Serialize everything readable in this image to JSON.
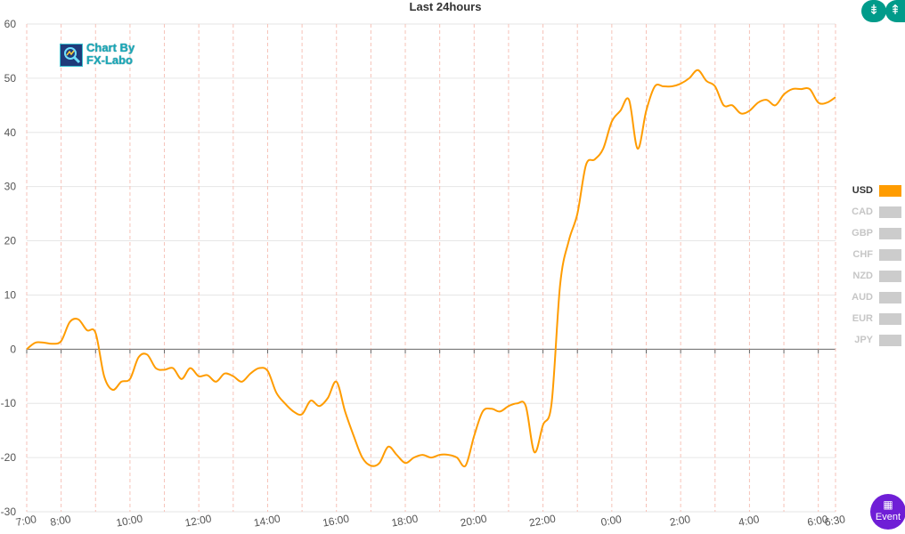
{
  "title": "Last 24hours",
  "watermark": {
    "line1": "Chart By",
    "line2": "FX-Labo"
  },
  "toolbar": {
    "collapse_icon": "collapse-vertical-icon",
    "expand_icon": "expand-vertical-icon"
  },
  "legend": [
    {
      "label": "USD",
      "active": true
    },
    {
      "label": "CAD",
      "active": false
    },
    {
      "label": "GBP",
      "active": false
    },
    {
      "label": "CHF",
      "active": false
    },
    {
      "label": "NZD",
      "active": false
    },
    {
      "label": "AUD",
      "active": false
    },
    {
      "label": "EUR",
      "active": false
    },
    {
      "label": "JPY",
      "active": false
    }
  ],
  "event_button": {
    "label": "Event",
    "icon": "calendar-icon"
  },
  "colors": {
    "usd_line": "#ff9c00",
    "inactive": "#cccccc",
    "grid": "#e6e6e6",
    "vline": "#f6c2b8",
    "event": "#6f1ed6",
    "tools": "#009b8a"
  },
  "chart_data": {
    "type": "line",
    "title": "Last 24hours",
    "xlabel": "",
    "ylabel": "",
    "ylim": [
      -30,
      60
    ],
    "yticks": [
      -30,
      -20,
      -10,
      0,
      10,
      20,
      30,
      40,
      50,
      60
    ],
    "xlim": [
      "7:00",
      "6:30"
    ],
    "xticks": [
      "7:00",
      "8:00",
      "10:00",
      "12:00",
      "14:00",
      "16:00",
      "18:00",
      "20:00",
      "22:00",
      "0:00",
      "2:00",
      "4:00",
      "6:00",
      "6:30"
    ],
    "grid": true,
    "legend_position": "right",
    "series": [
      {
        "name": "USD",
        "color": "#ff9c00",
        "x": [
          "7:00",
          "7:15",
          "7:30",
          "7:45",
          "8:00",
          "8:15",
          "8:30",
          "8:45",
          "9:00",
          "9:15",
          "9:30",
          "9:45",
          "10:00",
          "10:15",
          "10:30",
          "10:45",
          "11:00",
          "11:15",
          "11:30",
          "11:45",
          "12:00",
          "12:15",
          "12:30",
          "12:45",
          "13:00",
          "13:15",
          "13:30",
          "13:45",
          "14:00",
          "14:15",
          "14:30",
          "14:45",
          "15:00",
          "15:15",
          "15:30",
          "15:45",
          "16:00",
          "16:15",
          "16:30",
          "16:45",
          "17:00",
          "17:15",
          "17:30",
          "17:45",
          "18:00",
          "18:15",
          "18:30",
          "18:45",
          "19:00",
          "19:15",
          "19:30",
          "19:45",
          "20:00",
          "20:15",
          "20:30",
          "20:45",
          "21:00",
          "21:15",
          "21:30",
          "21:45",
          "22:00",
          "22:15",
          "22:30",
          "22:45",
          "23:00",
          "23:15",
          "23:30",
          "23:45",
          "0:00",
          "0:15",
          "0:30",
          "0:45",
          "1:00",
          "1:15",
          "1:30",
          "1:45",
          "2:00",
          "2:15",
          "2:30",
          "2:45",
          "3:00",
          "3:15",
          "3:30",
          "3:45",
          "4:00",
          "4:15",
          "4:30",
          "4:45",
          "5:00",
          "5:15",
          "5:30",
          "5:45",
          "6:00",
          "6:15",
          "6:30"
        ],
        "values": [
          0,
          1.2,
          1.2,
          1,
          1.5,
          5,
          5.5,
          3.5,
          3,
          -5,
          -7.5,
          -6,
          -5.5,
          -1.5,
          -1,
          -3.5,
          -3.8,
          -3.5,
          -5.5,
          -3.5,
          -5,
          -4.8,
          -6,
          -4.5,
          -5,
          -6,
          -4.5,
          -3.5,
          -4,
          -8,
          -10,
          -11.5,
          -12,
          -9.5,
          -10.5,
          -9,
          -6,
          -11.5,
          -16,
          -20,
          -21.5,
          -21,
          -18,
          -19.5,
          -21,
          -20,
          -19.5,
          -20,
          -19.5,
          -19.5,
          -20,
          -21.5,
          -16,
          -11.5,
          -11,
          -11.5,
          -10.5,
          -10,
          -10.5,
          -19,
          -14,
          -10,
          12,
          20,
          25,
          34,
          35,
          37,
          42,
          44,
          46,
          37,
          44,
          48.5,
          48.5,
          48.5,
          49,
          50,
          51.5,
          49.5,
          48.5,
          45,
          45,
          43.5,
          44,
          45.5,
          46,
          45,
          47,
          48,
          48,
          48,
          45.5,
          45.5,
          46.5
        ]
      }
    ]
  }
}
